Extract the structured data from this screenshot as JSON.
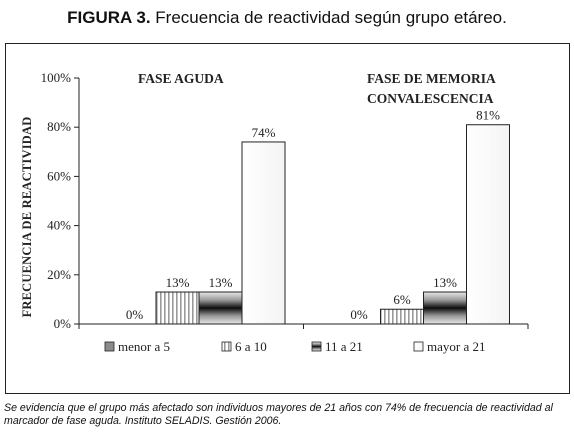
{
  "figure": {
    "label": "FIGURA 3.",
    "title": "Frecuencia de reactividad según grupo etáreo."
  },
  "caption": "Se evidencia que el grupo más afectado son individuos mayores de 21 años con 74% de frecuencia de reactividad al marcador de fase aguda. Instituto SELADIS. Gestión 2006.",
  "chart_data": {
    "type": "bar",
    "ylabel": "FRECUENCIA DE REACTIVIDAD",
    "ylim": [
      0,
      100
    ],
    "yticks": [
      "0%",
      "20%",
      "40%",
      "60%",
      "80%",
      "100%"
    ],
    "grid": false,
    "legend_position": "bottom",
    "panels": [
      {
        "title": "FASE AGUDA",
        "values": [
          0,
          13,
          13,
          74
        ],
        "labels": [
          "0%",
          "13%",
          "13%",
          "74%"
        ]
      },
      {
        "title": "FASE DE MEMORIA CONVALESCENCIA",
        "title_lines": [
          "FASE DE MEMORIA",
          "CONVALESCENCIA"
        ],
        "values": [
          0,
          6,
          13,
          81
        ],
        "labels": [
          "0%",
          "6%",
          "13%",
          "81%"
        ]
      }
    ],
    "series": [
      {
        "name": "menor a 5",
        "pattern": "gray"
      },
      {
        "name": "6 a 10",
        "pattern": "vertical-stripes"
      },
      {
        "name": "11 a 21",
        "pattern": "gradient"
      },
      {
        "name": "mayor a 21",
        "pattern": "white"
      }
    ]
  }
}
